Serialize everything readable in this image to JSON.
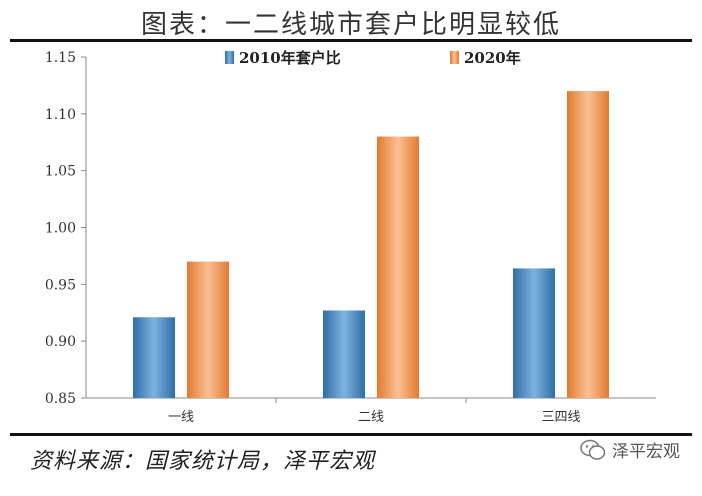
{
  "header": {
    "title": "图表：一二线城市套户比明显较低"
  },
  "footer": {
    "source": "资料来源：国家统计局，泽平宏观",
    "watermark": "泽平宏观"
  },
  "chart_data": {
    "type": "bar",
    "title": "",
    "xlabel": "",
    "ylabel": "",
    "categories": [
      "一线",
      "二线",
      "三四线"
    ],
    "series": [
      {
        "name": "2010年套户比",
        "values": [
          0.921,
          0.927,
          0.964
        ],
        "color": "#4a8cc7"
      },
      {
        "name": "2020年",
        "values": [
          0.97,
          1.08,
          1.12
        ],
        "color": "#f0944e"
      }
    ],
    "ylim": [
      0.85,
      1.15
    ],
    "yticks": [
      "0.85",
      "0.90",
      "0.95",
      "1.00",
      "1.05",
      "1.10",
      "1.15"
    ],
    "grid": false,
    "legend": "top"
  }
}
